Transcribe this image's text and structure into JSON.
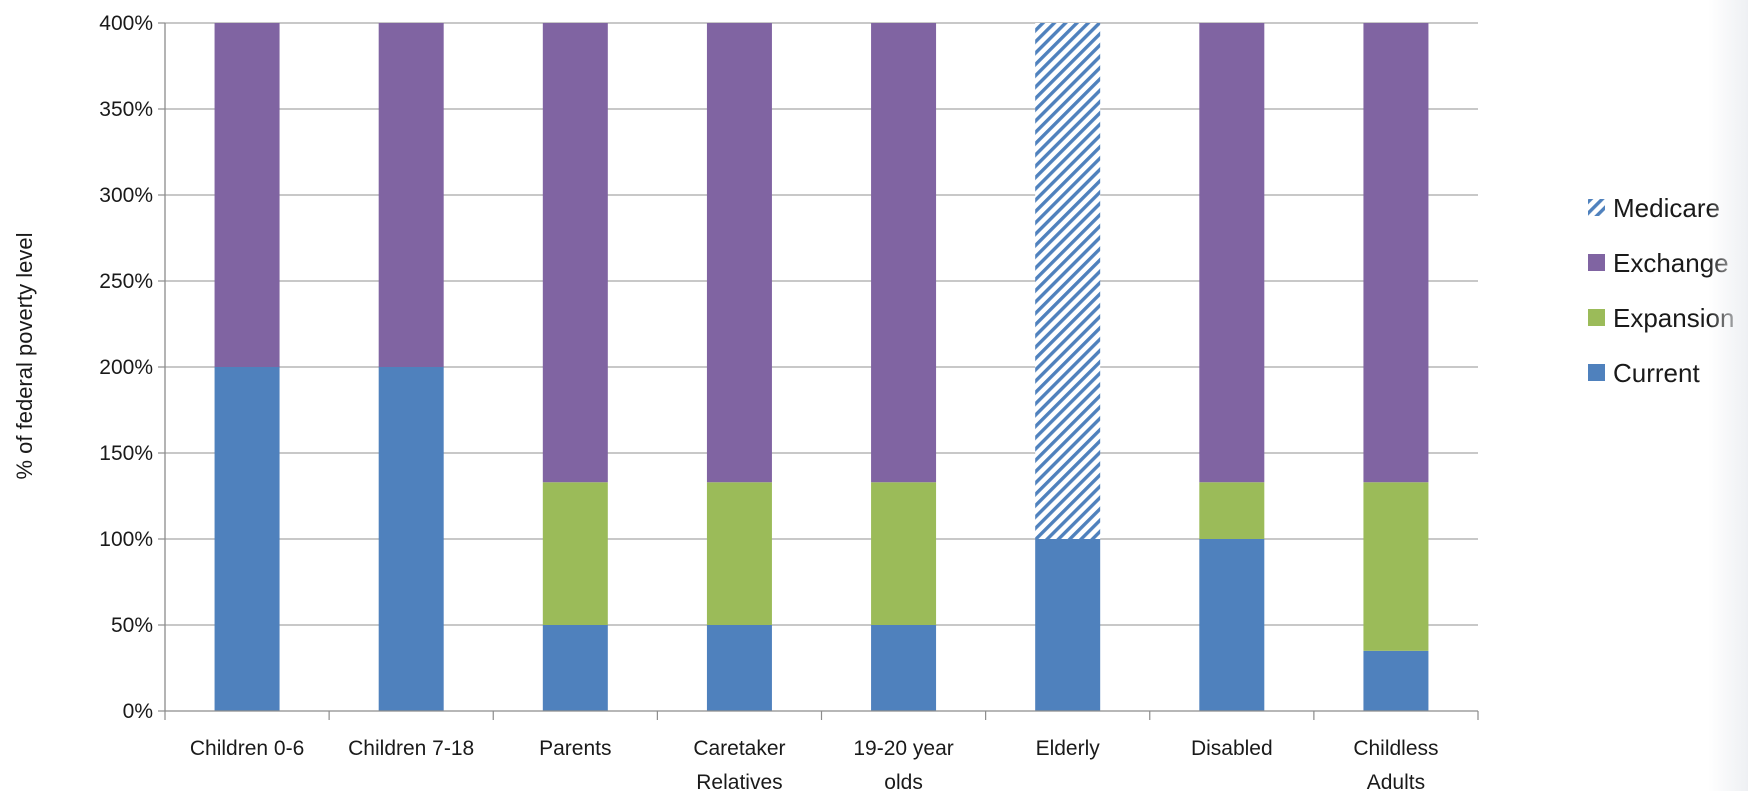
{
  "chart_data": {
    "type": "bar",
    "stacked": true,
    "title": "",
    "xlabel": "",
    "ylabel": "% of federal poverty level",
    "ylim": [
      0,
      400
    ],
    "yticks": [
      0,
      50,
      100,
      150,
      200,
      250,
      300,
      350,
      400
    ],
    "ytick_labels": [
      "0%",
      "50%",
      "100%",
      "150%",
      "200%",
      "250%",
      "300%",
      "350%",
      "400%"
    ],
    "grid": true,
    "legend_position": "right",
    "categories": [
      [
        "Children 0-6"
      ],
      [
        "Children 7-18"
      ],
      [
        "Parents"
      ],
      [
        "Caretaker",
        "Relatives"
      ],
      [
        "19-20 year",
        "olds"
      ],
      [
        "Elderly"
      ],
      [
        "Disabled"
      ],
      [
        "Childless",
        "Adults"
      ]
    ],
    "series": [
      {
        "name": "Current",
        "color": "#4f81bd",
        "pattern": "solid",
        "values": [
          200,
          200,
          50,
          50,
          50,
          100,
          100,
          35
        ]
      },
      {
        "name": "Expansion",
        "color": "#9bbb59",
        "pattern": "solid",
        "values": [
          0,
          0,
          83,
          83,
          83,
          0,
          33,
          98
        ]
      },
      {
        "name": "Exchange",
        "color": "#8064a2",
        "pattern": "solid",
        "values": [
          200,
          200,
          267,
          267,
          267,
          0,
          267,
          267
        ]
      },
      {
        "name": "Medicare",
        "color": "#4f81bd",
        "pattern": "diagonal-hatch",
        "values": [
          0,
          0,
          0,
          0,
          0,
          300,
          0,
          0
        ]
      }
    ],
    "legend_order": [
      "Medicare",
      "Exchange",
      "Expansion",
      "Current"
    ]
  }
}
